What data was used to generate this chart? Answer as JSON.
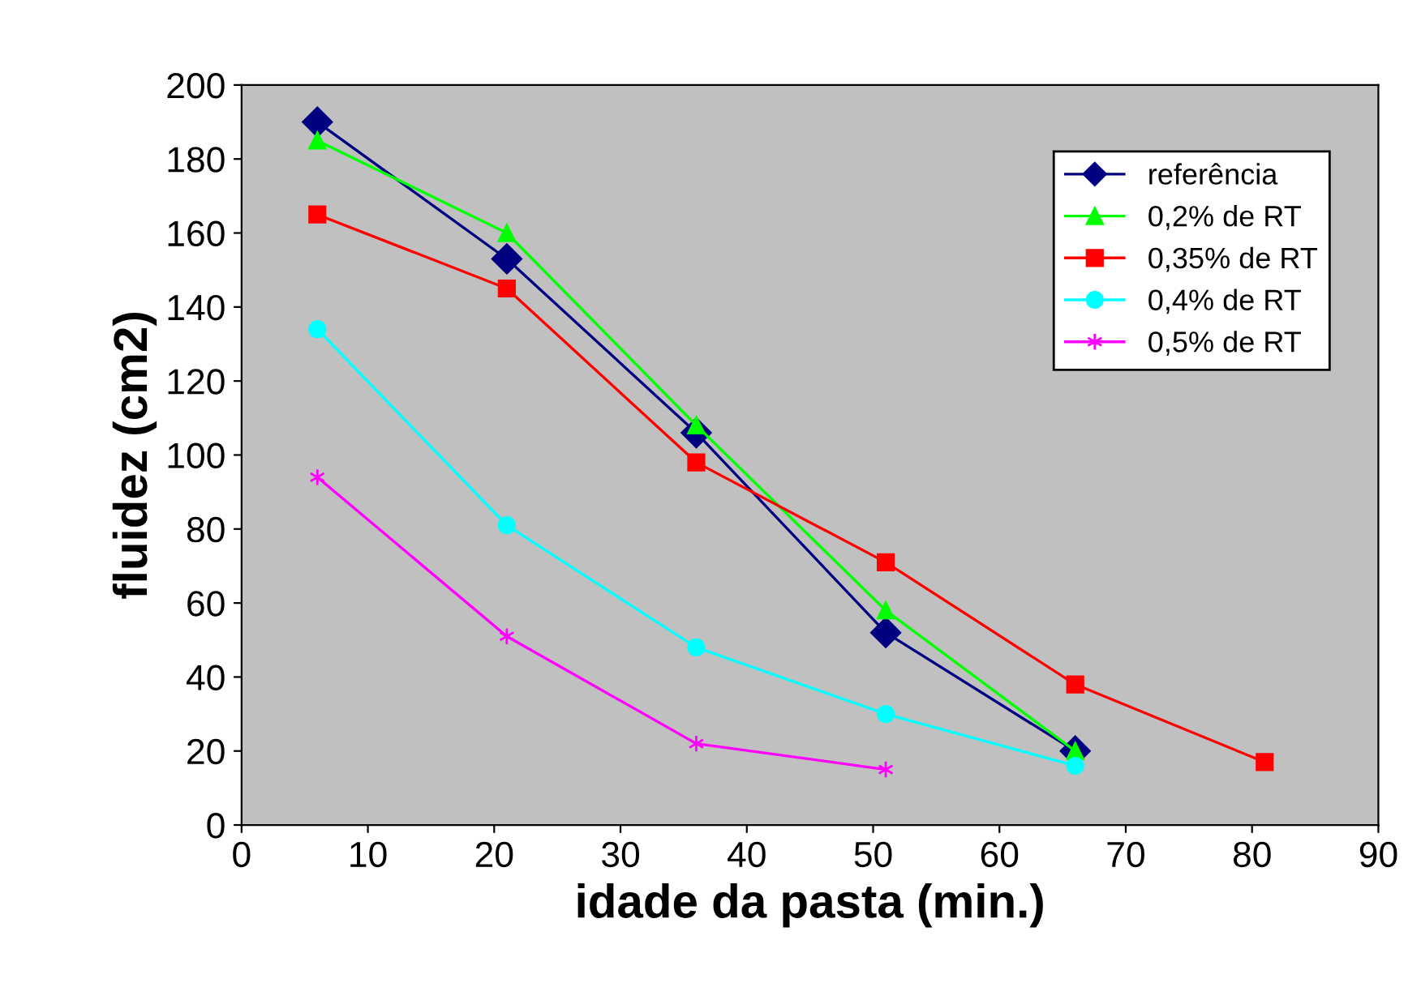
{
  "chart_data": {
    "type": "line",
    "xlabel": "idade da pasta (min.)",
    "ylabel": "fluidez (cm2)",
    "xlim": [
      0,
      90
    ],
    "xticks": [
      0,
      10,
      20,
      30,
      40,
      50,
      60,
      70,
      80,
      90
    ],
    "ylim": [
      0,
      200
    ],
    "yticks": [
      0,
      20,
      40,
      60,
      80,
      100,
      120,
      140,
      160,
      180,
      200
    ],
    "grid": false,
    "legend": "top right",
    "line_style": "solid",
    "series": [
      {
        "name": "referência",
        "color": "#000080",
        "marker": "diamond",
        "x": [
          6,
          21,
          36,
          51,
          66
        ],
        "values": [
          190,
          153,
          106,
          52,
          20
        ]
      },
      {
        "name": "0,2% de RT",
        "color": "#00ff00",
        "marker": "triangle",
        "x": [
          6,
          21,
          36,
          51,
          66
        ],
        "values": [
          185,
          160,
          108,
          58,
          20
        ]
      },
      {
        "name": "0,35% de RT",
        "color": "#ff0000",
        "marker": "square",
        "x": [
          6,
          21,
          36,
          51,
          66,
          81
        ],
        "values": [
          165,
          145,
          98,
          71,
          38,
          17
        ]
      },
      {
        "name": "0,4% de RT",
        "color": "#00ffff",
        "marker": "circle",
        "x": [
          6,
          21,
          36,
          51,
          66
        ],
        "values": [
          134,
          81,
          48,
          30,
          16
        ]
      },
      {
        "name": "0,5% de RT",
        "color": "#ff00ff",
        "marker": "cross",
        "x": [
          6,
          21,
          36,
          51
        ],
        "values": [
          94,
          51,
          22,
          15
        ]
      }
    ]
  }
}
